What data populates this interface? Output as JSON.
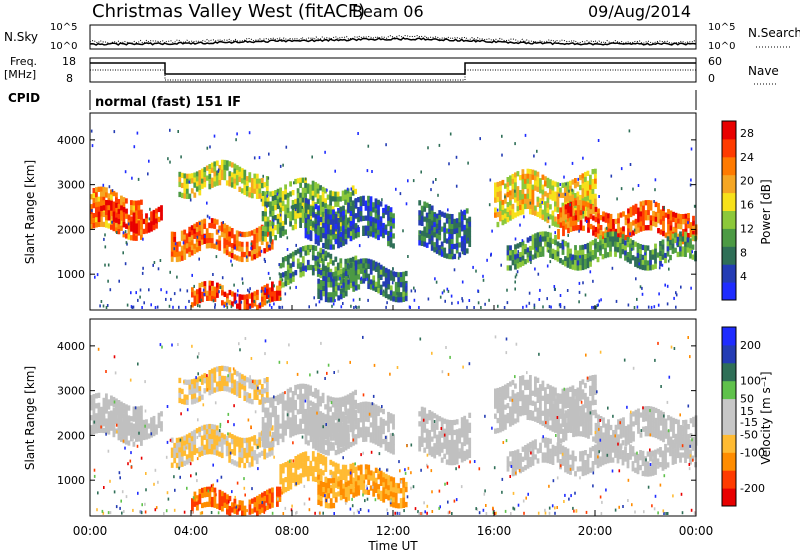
{
  "header": {
    "title": "Christmas Valley West (fitACF)",
    "beam": "Beam 06",
    "date": "09/Aug/2014"
  },
  "panels": {
    "nsky": {
      "left_label": "N.Sky",
      "right_label": "N.Search",
      "left_ticks": [
        "10^5",
        "10^0"
      ],
      "right_ticks": [
        "10^5",
        "10^0"
      ]
    },
    "freq": {
      "left_label_1": "Freq.",
      "left_label_2": "[MHz]",
      "right_label": "Nave",
      "left_ticks": [
        "18",
        "8"
      ],
      "right_ticks": [
        "60",
        "0"
      ]
    },
    "cpid": {
      "left_label": "CPID",
      "mode_text": "normal (fast) 151 IF"
    }
  },
  "colors": {
    "power_scale": [
      "#1f2cff",
      "#243cb4",
      "#2f6f57",
      "#4c9a44",
      "#8cc83a",
      "#f7e11a",
      "#f5a623",
      "#ff7a00",
      "#ff3b00",
      "#e80000"
    ],
    "velocity_scale": [
      "#1f2cff",
      "#243cb4",
      "#2f6f57",
      "#5fc14b",
      "#c7c7c7",
      "#c7c7c7",
      "#ffbb33",
      "#ff8c00",
      "#ff3b00",
      "#e80000"
    ],
    "ground_scatter": "#c0c0c0"
  },
  "chart_data": [
    {
      "type": "heatmap",
      "name": "power",
      "ylabel": "Slant Range [km]",
      "yticks": [
        "1000",
        "2000",
        "3000",
        "4000"
      ],
      "ylim": [
        200,
        4600
      ],
      "xlim_hours": [
        0,
        24
      ],
      "colorbar": {
        "label": "Power [dB]",
        "ticks": [
          "4",
          "8",
          "12",
          "16",
          "20",
          "24",
          "28"
        ],
        "range": [
          0,
          30
        ]
      }
    },
    {
      "type": "heatmap",
      "name": "velocity",
      "ylabel": "Slant Range [km]",
      "yticks": [
        "1000",
        "2000",
        "3000",
        "4000"
      ],
      "ylim": [
        200,
        4600
      ],
      "xlim_hours": [
        0,
        24
      ],
      "colorbar": {
        "label": "Velocity [m s⁻¹]",
        "ticks": [
          "200",
          "100",
          "50",
          "15",
          "-15",
          "-50",
          "-100",
          "-200"
        ],
        "range": [
          -250,
          250
        ]
      }
    }
  ],
  "xaxis": {
    "label": "Time UT",
    "ticks": [
      "00:00",
      "04:00",
      "08:00",
      "12:00",
      "16:00",
      "20:00",
      "00:00"
    ],
    "tick_hours": [
      0,
      4,
      8,
      12,
      16,
      20,
      24
    ]
  },
  "echo_bands": [
    {
      "t": [
        0.0,
        2.0
      ],
      "r": [
        2000,
        2800
      ],
      "p": 22,
      "v": -5,
      "g": true
    },
    {
      "t": [
        0.3,
        2.8
      ],
      "r": [
        2100,
        2500
      ],
      "p": 27,
      "v": -8,
      "g": true
    },
    {
      "t": [
        3.2,
        7.2
      ],
      "r": [
        1500,
        2100
      ],
      "p": 23,
      "v": -45,
      "g": false
    },
    {
      "t": [
        3.5,
        7.0
      ],
      "r": [
        2900,
        3400
      ],
      "p": 15,
      "v": -40,
      "g": false
    },
    {
      "t": [
        6.8,
        10.5
      ],
      "r": [
        1900,
        3000
      ],
      "p": 12,
      "v": -10,
      "g": true
    },
    {
      "t": [
        7.5,
        10.5
      ],
      "r": [
        850,
        1500
      ],
      "p": 10,
      "v": -60,
      "g": false
    },
    {
      "t": [
        9.0,
        12.5
      ],
      "r": [
        600,
        1200
      ],
      "p": 8,
      "v": -80,
      "g": false
    },
    {
      "t": [
        8.5,
        12.0
      ],
      "r": [
        1800,
        2600
      ],
      "p": 6,
      "v": 10,
      "g": true
    },
    {
      "t": [
        4.0,
        7.5
      ],
      "r": [
        300,
        700
      ],
      "p": 25,
      "v": -120,
      "g": false
    },
    {
      "t": [
        13.0,
        15.0
      ],
      "r": [
        1500,
        2500
      ],
      "p": 7,
      "v": 5,
      "g": true
    },
    {
      "t": [
        16.0,
        20.0
      ],
      "r": [
        2200,
        3200
      ],
      "p": 17,
      "v": 2,
      "g": true
    },
    {
      "t": [
        18.5,
        24.0
      ],
      "r": [
        1900,
        2500
      ],
      "p": 24,
      "v": -10,
      "g": true
    },
    {
      "t": [
        16.5,
        24.0
      ],
      "r": [
        1300,
        1800
      ],
      "p": 10,
      "v": 12,
      "g": true
    }
  ]
}
